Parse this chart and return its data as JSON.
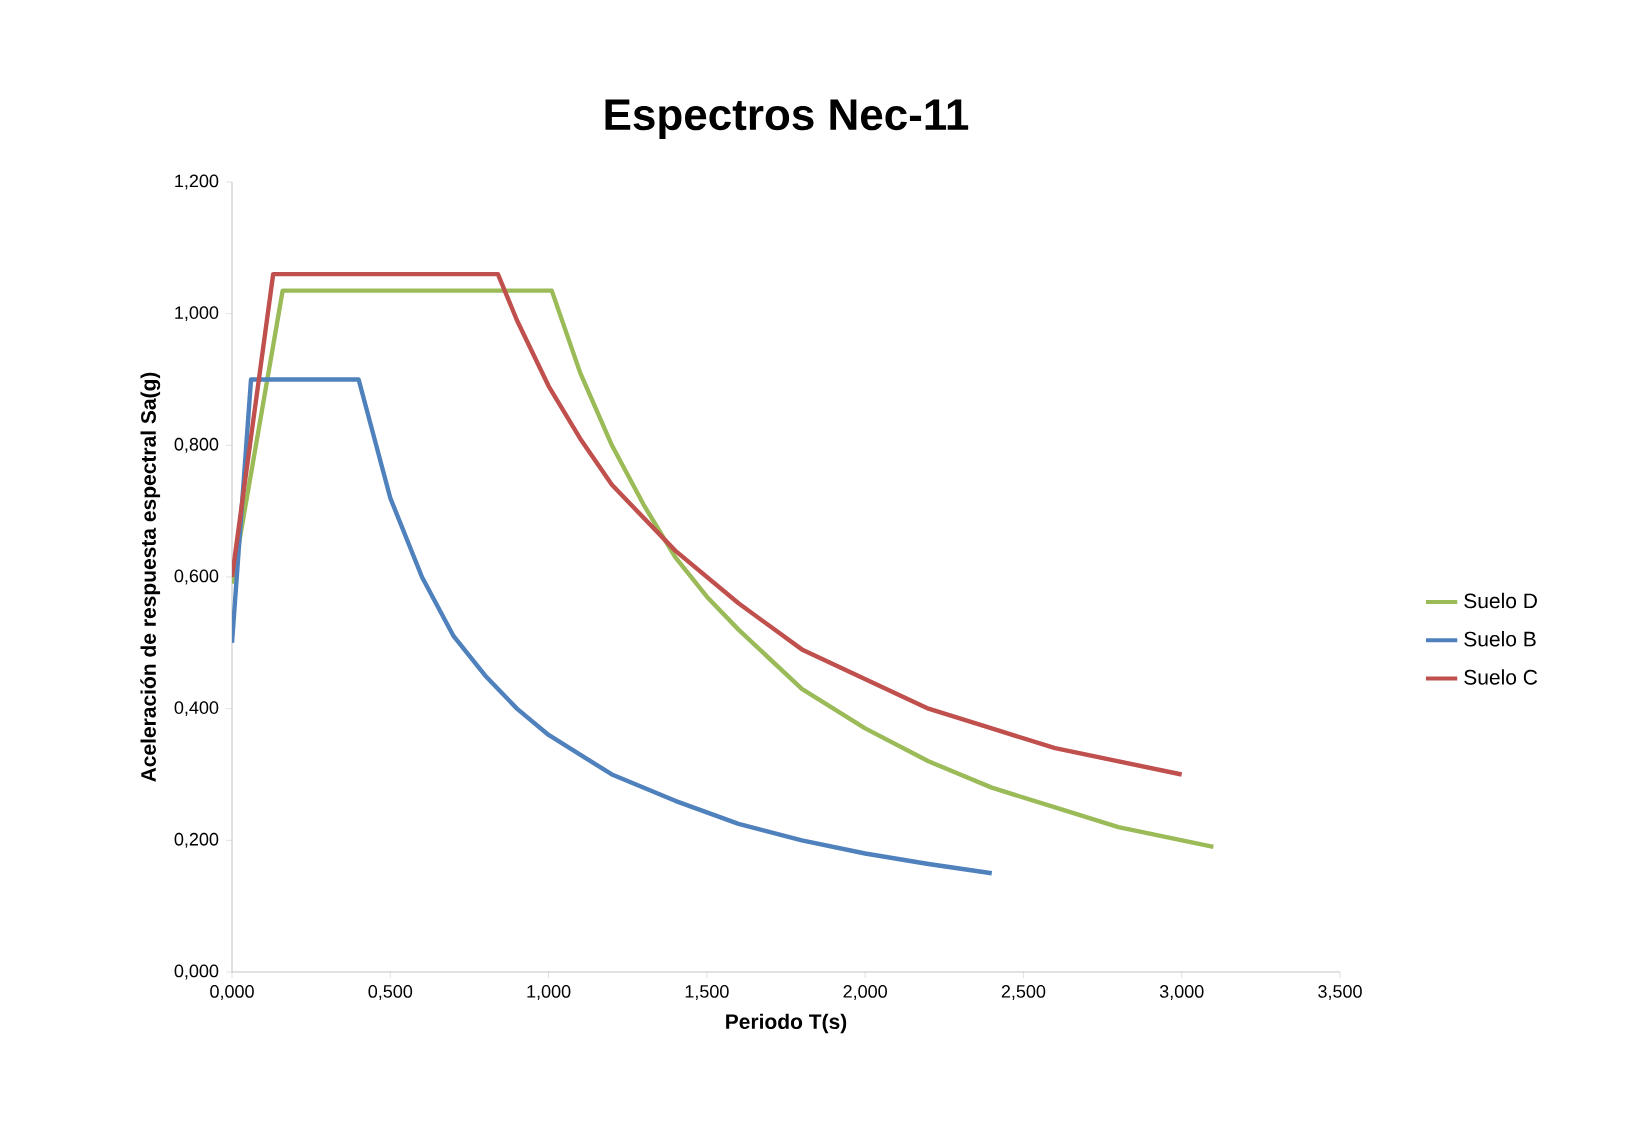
{
  "chart_data": {
    "type": "line",
    "title": "Espectros Nec-11",
    "xlabel": "Periodo T(s)",
    "ylabel": "Aceleración de respuesta espectral   Sa(g)",
    "xlim": [
      0,
      3.5
    ],
    "ylim": [
      0,
      1.2
    ],
    "xticks": [
      {
        "value": 0,
        "label": "0,000"
      },
      {
        "value": 0.5,
        "label": "0,500"
      },
      {
        "value": 1,
        "label": "1,000"
      },
      {
        "value": 1.5,
        "label": "1,500"
      },
      {
        "value": 2,
        "label": "2,000"
      },
      {
        "value": 2.5,
        "label": "2,500"
      },
      {
        "value": 3,
        "label": "3,000"
      },
      {
        "value": 3.5,
        "label": "3,500"
      }
    ],
    "yticks": [
      {
        "value": 0,
        "label": "0,000"
      },
      {
        "value": 0.2,
        "label": "0,200"
      },
      {
        "value": 0.4,
        "label": "0,400"
      },
      {
        "value": 0.6,
        "label": "0,600"
      },
      {
        "value": 0.8,
        "label": "0,800"
      },
      {
        "value": 1,
        "label": "1,000"
      },
      {
        "value": 1.2,
        "label": "1,200"
      }
    ],
    "grid": false,
    "legend": "right",
    "marker": "none",
    "line_style": "solid",
    "series": [
      {
        "name": "Suelo D",
        "color": "#9bbb59",
        "x": [
          0,
          0.16,
          1.01,
          1.1,
          1.2,
          1.3,
          1.4,
          1.5,
          1.6,
          1.8,
          2.0,
          2.2,
          2.4,
          2.6,
          2.8,
          3.1
        ],
        "values": [
          0.59,
          1.035,
          1.035,
          0.91,
          0.8,
          0.71,
          0.63,
          0.57,
          0.52,
          0.43,
          0.37,
          0.32,
          0.28,
          0.25,
          0.22,
          0.19
        ]
      },
      {
        "name": "Suelo B",
        "color": "#4f81bd",
        "x": [
          0,
          0.06,
          0.4,
          0.5,
          0.6,
          0.7,
          0.8,
          0.9,
          1.0,
          1.2,
          1.4,
          1.6,
          1.8,
          2.0,
          2.2,
          2.4
        ],
        "values": [
          0.5,
          0.9,
          0.9,
          0.72,
          0.6,
          0.51,
          0.45,
          0.4,
          0.36,
          0.3,
          0.26,
          0.225,
          0.2,
          0.18,
          0.164,
          0.15
        ]
      },
      {
        "name": "Suelo C",
        "color": "#c0504d",
        "x": [
          0,
          0.13,
          0.84,
          0.9,
          1.0,
          1.1,
          1.2,
          1.4,
          1.6,
          1.8,
          2.0,
          2.2,
          2.4,
          2.6,
          2.8,
          3.0
        ],
        "values": [
          0.6,
          1.06,
          1.06,
          0.99,
          0.89,
          0.81,
          0.74,
          0.64,
          0.56,
          0.49,
          0.445,
          0.4,
          0.37,
          0.34,
          0.32,
          0.3
        ]
      }
    ]
  }
}
